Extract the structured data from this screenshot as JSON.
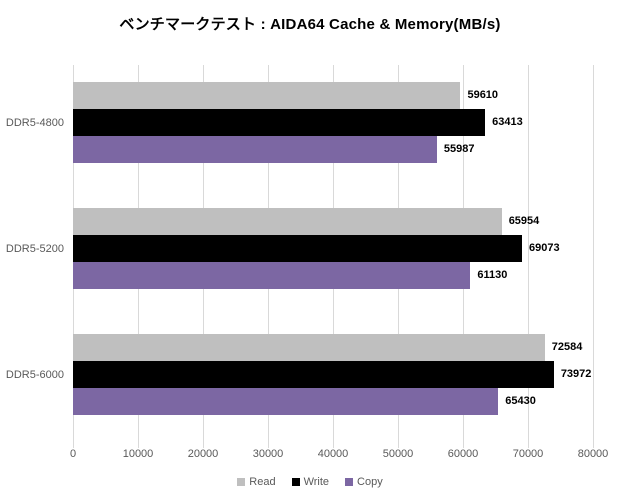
{
  "title": "ベンチマークテスト : AIDA64 Cache & Memory(MB/s)",
  "chart_data": {
    "type": "bar",
    "orientation": "horizontal",
    "title": "ベンチマークテスト : AIDA64 Cache & Memory(MB/s)",
    "categories": [
      "DDR5-4800",
      "DDR5-5200",
      "DDR5-6000"
    ],
    "series": [
      {
        "name": "Read",
        "color": "#bfbfbf",
        "values": [
          59610,
          65954,
          72584
        ]
      },
      {
        "name": "Write",
        "color": "#000000",
        "values": [
          63413,
          69073,
          73972
        ]
      },
      {
        "name": "Copy",
        "color": "#7c67a3",
        "values": [
          55987,
          61130,
          65430
        ]
      }
    ],
    "xlim": [
      0,
      80000
    ],
    "x_ticks": [
      0,
      10000,
      20000,
      30000,
      40000,
      50000,
      60000,
      70000,
      80000
    ],
    "grid": "vertical",
    "gridline_color": "#d9d9d9",
    "value_labels": true,
    "legend_position": "bottom",
    "axis_text_color": "#595959"
  }
}
